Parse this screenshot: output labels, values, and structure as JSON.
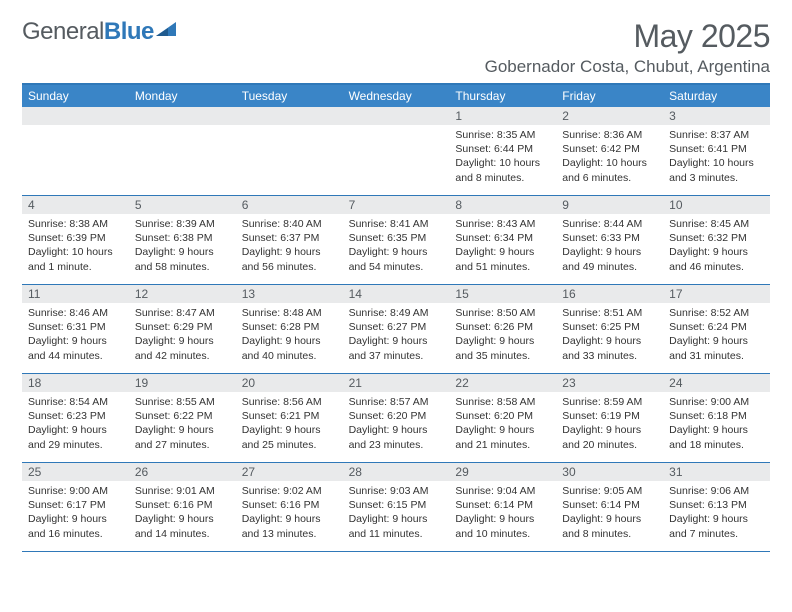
{
  "logo": {
    "name": "General",
    "accent": "Blue"
  },
  "title": "May 2025",
  "location": "Gobernador Costa, Chubut, Argentina",
  "colors": {
    "header_bg": "#3a85c7",
    "header_border": "#2f78b8",
    "daynum_bg": "#e9eaeb",
    "text": "#333333",
    "muted": "#555b60",
    "white": "#ffffff"
  },
  "day_headers": [
    "Sunday",
    "Monday",
    "Tuesday",
    "Wednesday",
    "Thursday",
    "Friday",
    "Saturday"
  ],
  "weeks": [
    [
      {
        "num": "",
        "lines": []
      },
      {
        "num": "",
        "lines": []
      },
      {
        "num": "",
        "lines": []
      },
      {
        "num": "",
        "lines": []
      },
      {
        "num": "1",
        "lines": [
          "Sunrise: 8:35 AM",
          "Sunset: 6:44 PM",
          "Daylight: 10 hours",
          "and 8 minutes."
        ]
      },
      {
        "num": "2",
        "lines": [
          "Sunrise: 8:36 AM",
          "Sunset: 6:42 PM",
          "Daylight: 10 hours",
          "and 6 minutes."
        ]
      },
      {
        "num": "3",
        "lines": [
          "Sunrise: 8:37 AM",
          "Sunset: 6:41 PM",
          "Daylight: 10 hours",
          "and 3 minutes."
        ]
      }
    ],
    [
      {
        "num": "4",
        "lines": [
          "Sunrise: 8:38 AM",
          "Sunset: 6:39 PM",
          "Daylight: 10 hours",
          "and 1 minute."
        ]
      },
      {
        "num": "5",
        "lines": [
          "Sunrise: 8:39 AM",
          "Sunset: 6:38 PM",
          "Daylight: 9 hours",
          "and 58 minutes."
        ]
      },
      {
        "num": "6",
        "lines": [
          "Sunrise: 8:40 AM",
          "Sunset: 6:37 PM",
          "Daylight: 9 hours",
          "and 56 minutes."
        ]
      },
      {
        "num": "7",
        "lines": [
          "Sunrise: 8:41 AM",
          "Sunset: 6:35 PM",
          "Daylight: 9 hours",
          "and 54 minutes."
        ]
      },
      {
        "num": "8",
        "lines": [
          "Sunrise: 8:43 AM",
          "Sunset: 6:34 PM",
          "Daylight: 9 hours",
          "and 51 minutes."
        ]
      },
      {
        "num": "9",
        "lines": [
          "Sunrise: 8:44 AM",
          "Sunset: 6:33 PM",
          "Daylight: 9 hours",
          "and 49 minutes."
        ]
      },
      {
        "num": "10",
        "lines": [
          "Sunrise: 8:45 AM",
          "Sunset: 6:32 PM",
          "Daylight: 9 hours",
          "and 46 minutes."
        ]
      }
    ],
    [
      {
        "num": "11",
        "lines": [
          "Sunrise: 8:46 AM",
          "Sunset: 6:31 PM",
          "Daylight: 9 hours",
          "and 44 minutes."
        ]
      },
      {
        "num": "12",
        "lines": [
          "Sunrise: 8:47 AM",
          "Sunset: 6:29 PM",
          "Daylight: 9 hours",
          "and 42 minutes."
        ]
      },
      {
        "num": "13",
        "lines": [
          "Sunrise: 8:48 AM",
          "Sunset: 6:28 PM",
          "Daylight: 9 hours",
          "and 40 minutes."
        ]
      },
      {
        "num": "14",
        "lines": [
          "Sunrise: 8:49 AM",
          "Sunset: 6:27 PM",
          "Daylight: 9 hours",
          "and 37 minutes."
        ]
      },
      {
        "num": "15",
        "lines": [
          "Sunrise: 8:50 AM",
          "Sunset: 6:26 PM",
          "Daylight: 9 hours",
          "and 35 minutes."
        ]
      },
      {
        "num": "16",
        "lines": [
          "Sunrise: 8:51 AM",
          "Sunset: 6:25 PM",
          "Daylight: 9 hours",
          "and 33 minutes."
        ]
      },
      {
        "num": "17",
        "lines": [
          "Sunrise: 8:52 AM",
          "Sunset: 6:24 PM",
          "Daylight: 9 hours",
          "and 31 minutes."
        ]
      }
    ],
    [
      {
        "num": "18",
        "lines": [
          "Sunrise: 8:54 AM",
          "Sunset: 6:23 PM",
          "Daylight: 9 hours",
          "and 29 minutes."
        ]
      },
      {
        "num": "19",
        "lines": [
          "Sunrise: 8:55 AM",
          "Sunset: 6:22 PM",
          "Daylight: 9 hours",
          "and 27 minutes."
        ]
      },
      {
        "num": "20",
        "lines": [
          "Sunrise: 8:56 AM",
          "Sunset: 6:21 PM",
          "Daylight: 9 hours",
          "and 25 minutes."
        ]
      },
      {
        "num": "21",
        "lines": [
          "Sunrise: 8:57 AM",
          "Sunset: 6:20 PM",
          "Daylight: 9 hours",
          "and 23 minutes."
        ]
      },
      {
        "num": "22",
        "lines": [
          "Sunrise: 8:58 AM",
          "Sunset: 6:20 PM",
          "Daylight: 9 hours",
          "and 21 minutes."
        ]
      },
      {
        "num": "23",
        "lines": [
          "Sunrise: 8:59 AM",
          "Sunset: 6:19 PM",
          "Daylight: 9 hours",
          "and 20 minutes."
        ]
      },
      {
        "num": "24",
        "lines": [
          "Sunrise: 9:00 AM",
          "Sunset: 6:18 PM",
          "Daylight: 9 hours",
          "and 18 minutes."
        ]
      }
    ],
    [
      {
        "num": "25",
        "lines": [
          "Sunrise: 9:00 AM",
          "Sunset: 6:17 PM",
          "Daylight: 9 hours",
          "and 16 minutes."
        ]
      },
      {
        "num": "26",
        "lines": [
          "Sunrise: 9:01 AM",
          "Sunset: 6:16 PM",
          "Daylight: 9 hours",
          "and 14 minutes."
        ]
      },
      {
        "num": "27",
        "lines": [
          "Sunrise: 9:02 AM",
          "Sunset: 6:16 PM",
          "Daylight: 9 hours",
          "and 13 minutes."
        ]
      },
      {
        "num": "28",
        "lines": [
          "Sunrise: 9:03 AM",
          "Sunset: 6:15 PM",
          "Daylight: 9 hours",
          "and 11 minutes."
        ]
      },
      {
        "num": "29",
        "lines": [
          "Sunrise: 9:04 AM",
          "Sunset: 6:14 PM",
          "Daylight: 9 hours",
          "and 10 minutes."
        ]
      },
      {
        "num": "30",
        "lines": [
          "Sunrise: 9:05 AM",
          "Sunset: 6:14 PM",
          "Daylight: 9 hours",
          "and 8 minutes."
        ]
      },
      {
        "num": "31",
        "lines": [
          "Sunrise: 9:06 AM",
          "Sunset: 6:13 PM",
          "Daylight: 9 hours",
          "and 7 minutes."
        ]
      }
    ]
  ]
}
